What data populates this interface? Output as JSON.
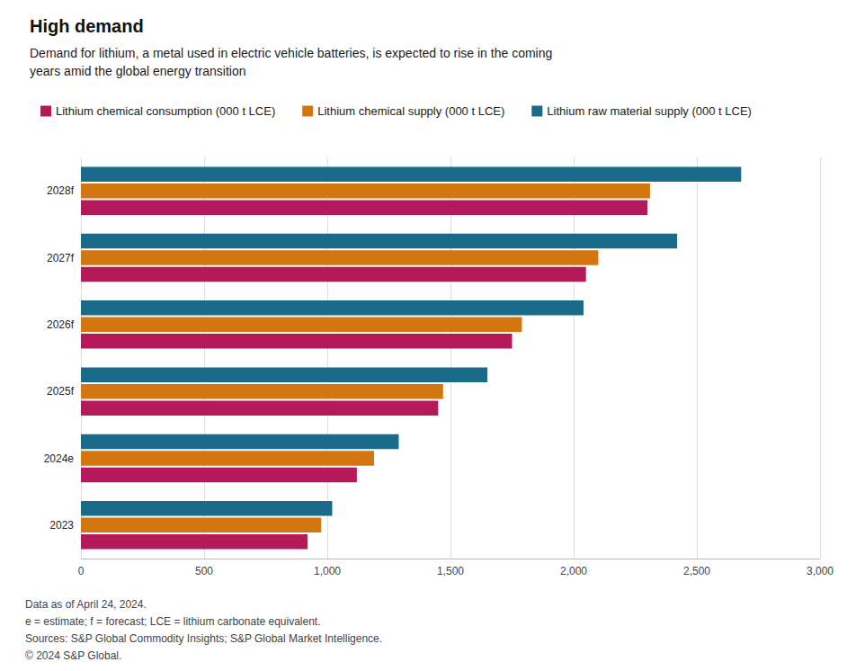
{
  "chart_data": {
    "type": "bar",
    "orientation": "horizontal",
    "title": "High demand",
    "subtitle": "Demand for lithium, a metal used in electric vehicle batteries, is expected to rise in the coming\nyears amid the global energy transition",
    "categories": [
      "2023",
      "2024e",
      "2025f",
      "2026f",
      "2027f",
      "2028f"
    ],
    "series": [
      {
        "name": "Lithium chemical consumption (000 t LCE)",
        "color": "#b5195a",
        "values": [
          920,
          1120,
          1450,
          1750,
          2050,
          2300
        ]
      },
      {
        "name": "Lithium chemical supply (000 t LCE)",
        "color": "#d4760f",
        "values": [
          975,
          1190,
          1470,
          1790,
          2100,
          2310
        ]
      },
      {
        "name": "Lithium raw material supply (000 t LCE)",
        "color": "#1a6b8a",
        "values": [
          1020,
          1290,
          1650,
          2040,
          2420,
          2680
        ]
      }
    ],
    "xlim": [
      0,
      3000
    ],
    "xticks": [
      0,
      500,
      {
        "value": 1000,
        "label": "1,000"
      },
      {
        "value": 1500,
        "label": "1,500"
      },
      {
        "value": 2000,
        "label": "2,000"
      },
      {
        "value": 2500,
        "label": "2,500"
      },
      {
        "value": 3000,
        "label": "3,000"
      }
    ],
    "grid": true,
    "legend": "top",
    "annotations": [
      "Data as of April 24, 2024.",
      "e = estimate; f = forecast; LCE = lithium carbonate equivalent.",
      "Sources: S&P Global Commodity Insights; S&P Global Market Intelligence.",
      "© 2024 S&P Global."
    ]
  }
}
